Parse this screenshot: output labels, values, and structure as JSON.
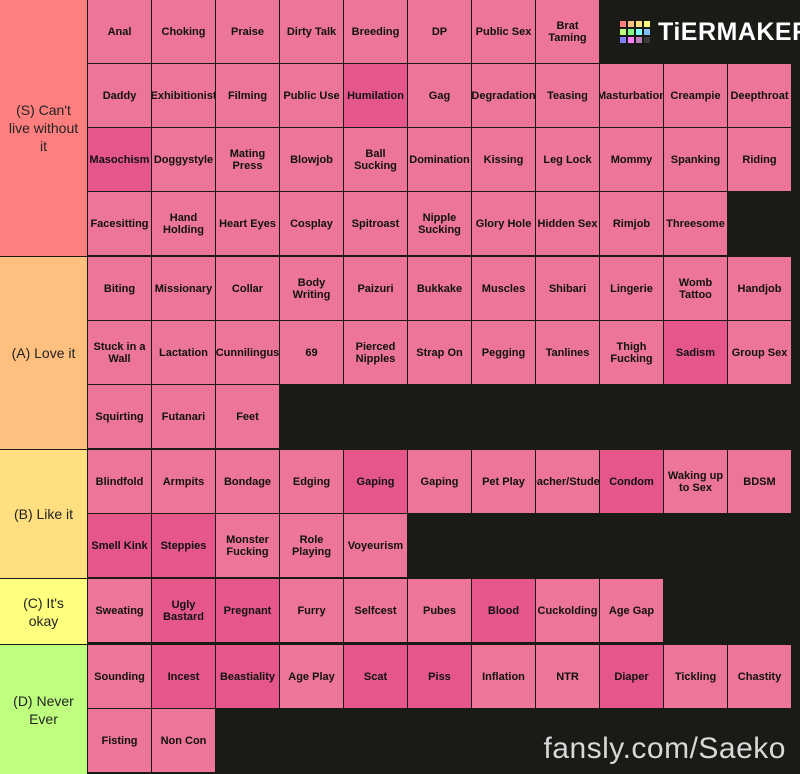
{
  "logo": {
    "text": "TiERMAKER",
    "grid_colors": [
      "#ff7f7f",
      "#ffbf7f",
      "#ffdf7f",
      "#ffff7f",
      "#bfff7f",
      "#7fff7f",
      "#7fffff",
      "#7fbfff",
      "#7f7fff",
      "#ff7fff",
      "#bf7fbf",
      "#3b3b3b"
    ]
  },
  "watermark": "fansly.com/Saeko",
  "tiers": [
    {
      "label": "(S) Can't live without it",
      "color": "#ff7f7f",
      "items": [
        "Anal",
        "Choking",
        "Praise",
        "Dirty Talk",
        "Breeding",
        "DP",
        "Public Sex",
        "Brat\nTaming",
        "Daddy",
        "Exhibitionist",
        "Filming",
        "Public Use",
        "Humilation",
        "Gag",
        "Degradation",
        "Teasing",
        "Masturbation",
        "Creampie",
        "Deepthroat",
        "Masochism",
        "Doggystyle",
        "Mating\nPress",
        "Blowjob",
        "Ball\nSucking",
        "Domination",
        "Kissing",
        "Leg Lock",
        "Mommy",
        "Spanking",
        "Riding",
        "Facesitting",
        "Hand\nHolding",
        "Heart Eyes",
        "Cosplay",
        "Spitroast",
        "Nipple\nSucking",
        "Glory Hole",
        "Hidden Sex",
        "Rimjob",
        "Threesome"
      ]
    },
    {
      "label": "(A) Love it",
      "color": "#ffbf7f",
      "items": [
        "Biting",
        "Missionary",
        "Collar",
        "Body\nWriting",
        "Paizuri",
        "Bukkake",
        "Muscles",
        "Shibari",
        "Lingerie",
        "Womb\nTattoo",
        "Handjob",
        "Stuck in a\nWall",
        "Lactation",
        "Cunnilingus",
        "69",
        "Pierced\nNipples",
        "Strap On",
        "Pegging",
        "Tanlines",
        "Thigh\nFucking",
        "Sadism",
        "Group Sex",
        "Squirting",
        "Futanari",
        "Feet"
      ]
    },
    {
      "label": "(B) Like it",
      "color": "#ffdf7f",
      "items": [
        "Blindfold",
        "Armpits",
        "Bondage",
        "Edging",
        "Gaping",
        "Gaping",
        "Pet Play",
        "Teacher/Student",
        "Condom",
        "Waking up\nto Sex",
        "BDSM",
        "Smell Kink",
        "Steppies",
        "Monster\nFucking",
        "Role\nPlaying",
        "Voyeurism"
      ]
    },
    {
      "label": "(C) It's okay",
      "color": "#ffff7f",
      "items": [
        "Sweating",
        "Ugly\nBastard",
        "Pregnant",
        "Furry",
        "Selfcest",
        "Pubes",
        "Blood",
        "Cuckolding",
        "Age Gap"
      ]
    },
    {
      "label": "(D) Never Ever",
      "color": "#bfff7f",
      "items": [
        "Sounding",
        "Incest",
        "Beastiality",
        "Age Play",
        "Scat",
        "Piss",
        "Inflation",
        "NTR",
        "Diaper",
        "Tickling",
        "Chastity",
        "Fisting",
        "Non Con"
      ]
    }
  ]
}
